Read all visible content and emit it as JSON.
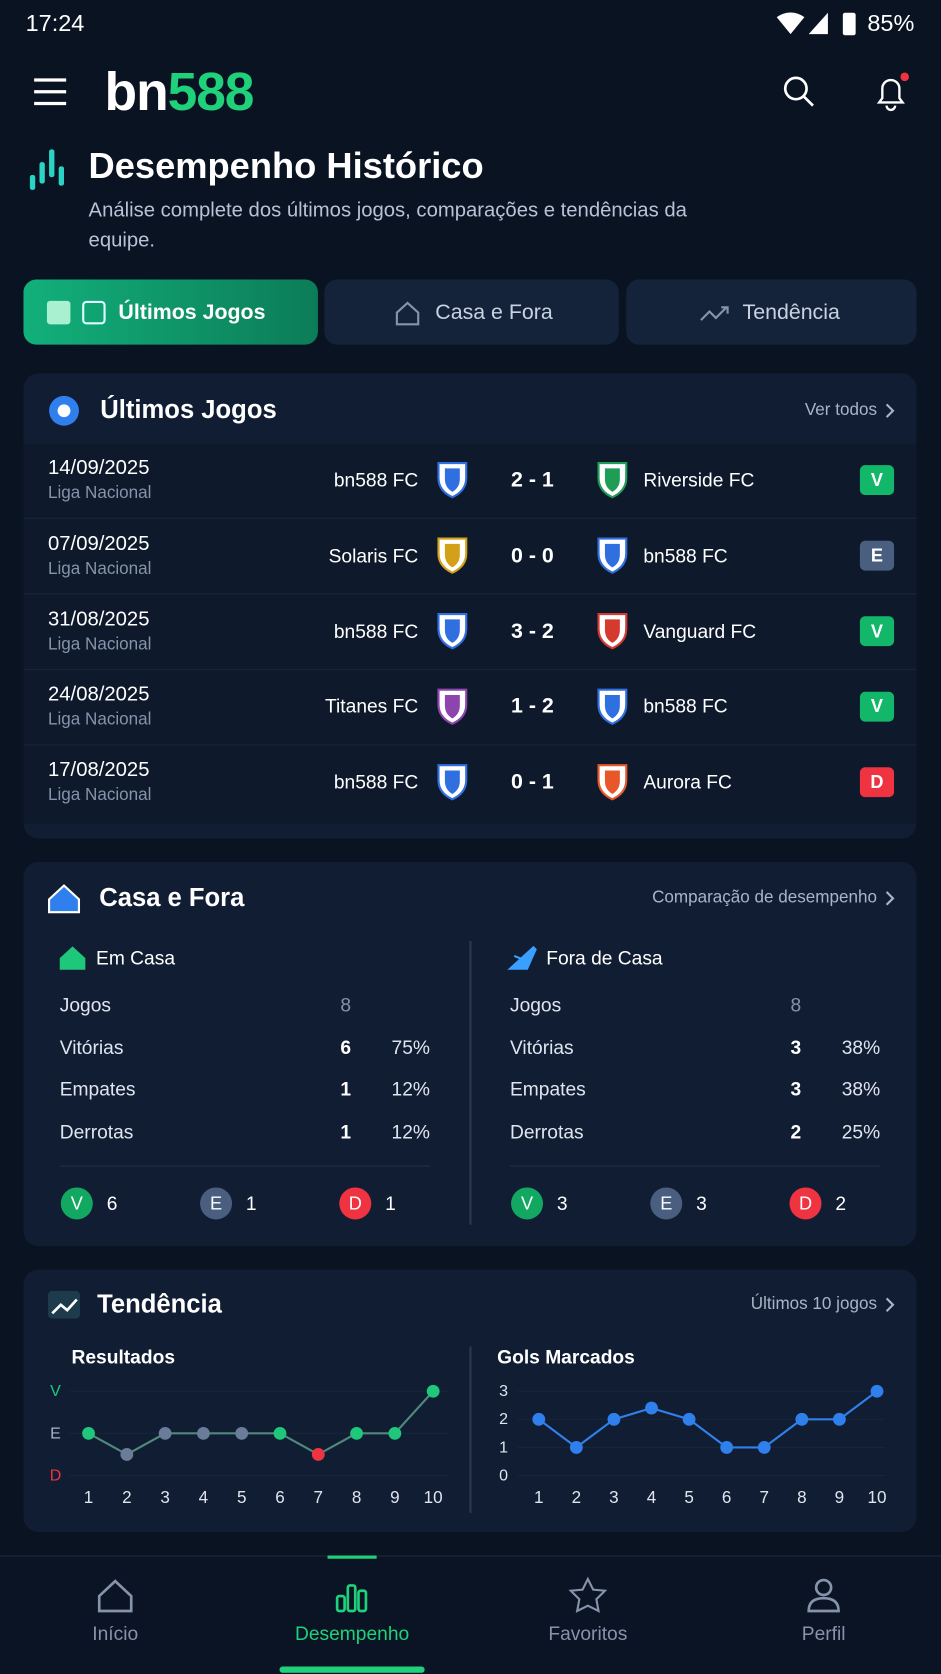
{
  "status_bar": {
    "time": "17:24",
    "battery": "85%"
  },
  "header": {
    "logo_a": "bn",
    "logo_b": "588"
  },
  "page": {
    "title": "Desempenho Histórico",
    "subtitle": "Análise complete dos últimos jogos, comparações e tendências da equipe."
  },
  "tabs": [
    "Últimos Jogos",
    "Casa e Fora",
    "Tendência"
  ],
  "recent": {
    "title": "Últimos Jogos",
    "link": "Ver todos",
    "matches": [
      {
        "date": "14/09/2025",
        "league": "Liga Nacional",
        "home": "bn588 FC",
        "home_color": "#2f6fe0",
        "score": "2 - 1",
        "away": "Riverside FC",
        "away_color": "#1f9d55",
        "result": "V",
        "result_color": "#12b76a"
      },
      {
        "date": "07/09/2025",
        "league": "Liga Nacional",
        "home": "Solaris FC",
        "home_color": "#d4a017",
        "score": "0 - 0",
        "away": "bn588 FC",
        "away_color": "#2f6fe0",
        "result": "E",
        "result_color": "#4a5f80"
      },
      {
        "date": "31/08/2025",
        "league": "Liga Nacional",
        "home": "bn588 FC",
        "home_color": "#2f6fe0",
        "score": "3 - 2",
        "away": "Vanguard FC",
        "away_color": "#d63a2f",
        "result": "V",
        "result_color": "#12b76a"
      },
      {
        "date": "24/08/2025",
        "league": "Liga Nacional",
        "home": "Titanes FC",
        "home_color": "#8e44ad",
        "score": "1 - 2",
        "away": "bn588 FC",
        "away_color": "#2f6fe0",
        "result": "V",
        "result_color": "#12b76a"
      },
      {
        "date": "17/08/2025",
        "league": "Liga Nacional",
        "home": "bn588 FC",
        "home_color": "#2f6fe0",
        "score": "0 - 1",
        "away": "Aurora FC",
        "away_color": "#e8572a",
        "result": "D",
        "result_color": "#ef3340"
      }
    ]
  },
  "home_away": {
    "title": "Casa e Fora",
    "link": "Comparação de desempenho",
    "columns": [
      {
        "title": "Em Casa",
        "rows": [
          {
            "label": "Jogos",
            "count": "8"
          },
          {
            "label": "Vitórias",
            "count": "6",
            "pct": "75%"
          },
          {
            "label": "Empates",
            "count": "1",
            "pct": "12%"
          },
          {
            "label": "Derrotas",
            "count": "1",
            "pct": "12%"
          }
        ],
        "summary": [
          {
            "letter": "V",
            "count": "6",
            "color": "#12a862"
          },
          {
            "letter": "E",
            "count": "1",
            "color": "#4a5f80"
          },
          {
            "letter": "D",
            "count": "1",
            "color": "#ef3340"
          }
        ]
      },
      {
        "title": "Fora de Casa",
        "rows": [
          {
            "label": "Jogos",
            "count": "8"
          },
          {
            "label": "Vitórias",
            "count": "3",
            "pct": "38%"
          },
          {
            "label": "Empates",
            "count": "3",
            "pct": "38%"
          },
          {
            "label": "Derrotas",
            "count": "2",
            "pct": "25%"
          }
        ],
        "summary": [
          {
            "letter": "V",
            "count": "3",
            "color": "#12a862"
          },
          {
            "letter": "E",
            "count": "3",
            "color": "#4a5f80"
          },
          {
            "letter": "D",
            "count": "2",
            "color": "#ef3340"
          }
        ]
      }
    ]
  },
  "trend": {
    "title": "Tendência",
    "link": "Últimos 10 jogos"
  },
  "chart_data": [
    {
      "type": "line",
      "title": "Resultados",
      "categories": [
        "1",
        "2",
        "3",
        "4",
        "5",
        "6",
        "7",
        "8",
        "9",
        "10"
      ],
      "values": [
        0,
        -0.5,
        0,
        0,
        0,
        0,
        -0.5,
        0,
        0,
        1
      ],
      "point_colors": [
        "#1fc77a",
        "#6b7c99",
        "#6b7c99",
        "#6b7c99",
        "#6b7c99",
        "#1fc77a",
        "#ef3340",
        "#1fc77a",
        "#1fc77a",
        "#1fc77a"
      ],
      "color": "#4f8a7c",
      "ylim": [
        -1,
        1
      ],
      "yticks": [
        {
          "value": 1,
          "label": "V"
        },
        {
          "value": 0,
          "label": "E"
        },
        {
          "value": -1,
          "label": "D"
        }
      ],
      "ytick_colors": [
        "#1fc77a",
        "#aab4c8",
        "#ef3340"
      ],
      "grid": true
    },
    {
      "type": "line",
      "title": "Gols Marcados",
      "categories": [
        "1",
        "2",
        "3",
        "4",
        "5",
        "6",
        "7",
        "8",
        "9",
        "10"
      ],
      "values": [
        2,
        1,
        2,
        2.4,
        2,
        1,
        1,
        2,
        2,
        3
      ],
      "color": "#2f80ed",
      "ylim": [
        0,
        3
      ],
      "yticks": [
        0,
        1,
        2,
        3
      ],
      "grid": true
    }
  ],
  "nav": [
    "Início",
    "Desempenho",
    "Favoritos",
    "Perfil"
  ]
}
